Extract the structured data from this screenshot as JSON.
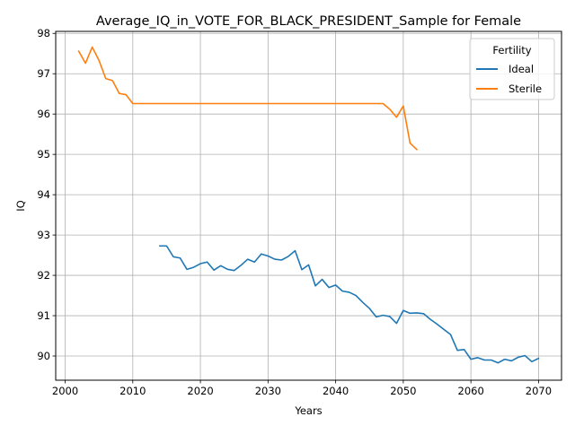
{
  "chart_data": {
    "type": "line",
    "title": "Average_IQ_in_VOTE_FOR_BLACK_PRESIDENT_Sample for Female",
    "xlabel": "Years",
    "ylabel": "IQ",
    "xlim": [
      1998.6,
      2073.4
    ],
    "ylim": [
      89.4,
      98.05
    ],
    "xticks": [
      2000,
      2010,
      2020,
      2030,
      2040,
      2050,
      2060,
      2070
    ],
    "yticks": [
      90,
      91,
      92,
      93,
      94,
      95,
      96,
      97,
      98
    ],
    "grid": true,
    "legend": {
      "title": "Fertility",
      "placement": "top-right"
    },
    "series": [
      {
        "name": "Ideal",
        "color": "#1f77b4",
        "x": [
          2014,
          2015,
          2016,
          2017,
          2018,
          2019,
          2020,
          2021,
          2022,
          2023,
          2024,
          2025,
          2026,
          2027,
          2028,
          2029,
          2030,
          2031,
          2032,
          2033,
          2034,
          2035,
          2036,
          2037,
          2038,
          2039,
          2040,
          2041,
          2042,
          2043,
          2044,
          2045,
          2046,
          2047,
          2048,
          2049,
          2050,
          2051,
          2052,
          2053,
          2054,
          2055,
          2056,
          2057,
          2058,
          2059,
          2060,
          2061,
          2062,
          2063,
          2064,
          2065,
          2066,
          2067,
          2068,
          2069,
          2070
        ],
        "y": [
          92.73,
          92.73,
          92.46,
          92.43,
          92.15,
          92.2,
          92.29,
          92.33,
          92.13,
          92.24,
          92.15,
          92.12,
          92.25,
          92.4,
          92.33,
          92.53,
          92.48,
          92.4,
          92.38,
          92.47,
          92.61,
          92.14,
          92.26,
          91.74,
          91.9,
          91.7,
          91.76,
          91.61,
          91.58,
          91.5,
          91.33,
          91.18,
          90.97,
          91.01,
          90.98,
          90.81,
          91.13,
          91.06,
          91.07,
          91.05,
          90.91,
          90.79,
          90.66,
          90.53,
          90.14,
          90.16,
          89.92,
          89.96,
          89.9,
          89.9,
          89.83,
          89.92,
          89.88,
          89.97,
          90.01,
          89.86,
          89.94
        ]
      },
      {
        "name": "Sterile",
        "color": "#ff7f0e",
        "x": [
          2002,
          2003,
          2004,
          2005,
          2006,
          2007,
          2008,
          2009,
          2010,
          2011,
          2012,
          2013,
          2014,
          2015,
          2016,
          2017,
          2018,
          2019,
          2020,
          2021,
          2022,
          2023,
          2024,
          2025,
          2026,
          2027,
          2028,
          2029,
          2030,
          2031,
          2032,
          2033,
          2034,
          2035,
          2036,
          2037,
          2038,
          2039,
          2040,
          2041,
          2042,
          2043,
          2044,
          2045,
          2046,
          2047,
          2048,
          2049,
          2050,
          2051,
          2052
        ],
        "y": [
          97.56,
          97.26,
          97.66,
          97.33,
          96.88,
          96.83,
          96.51,
          96.48,
          96.26,
          96.26,
          96.26,
          96.26,
          96.26,
          96.26,
          96.26,
          96.26,
          96.26,
          96.26,
          96.26,
          96.26,
          96.26,
          96.26,
          96.26,
          96.26,
          96.26,
          96.26,
          96.26,
          96.26,
          96.26,
          96.26,
          96.26,
          96.26,
          96.26,
          96.26,
          96.26,
          96.26,
          96.26,
          96.26,
          96.26,
          96.26,
          96.26,
          96.26,
          96.26,
          96.26,
          96.26,
          96.26,
          96.12,
          95.92,
          96.2,
          95.28,
          95.12
        ]
      }
    ]
  }
}
